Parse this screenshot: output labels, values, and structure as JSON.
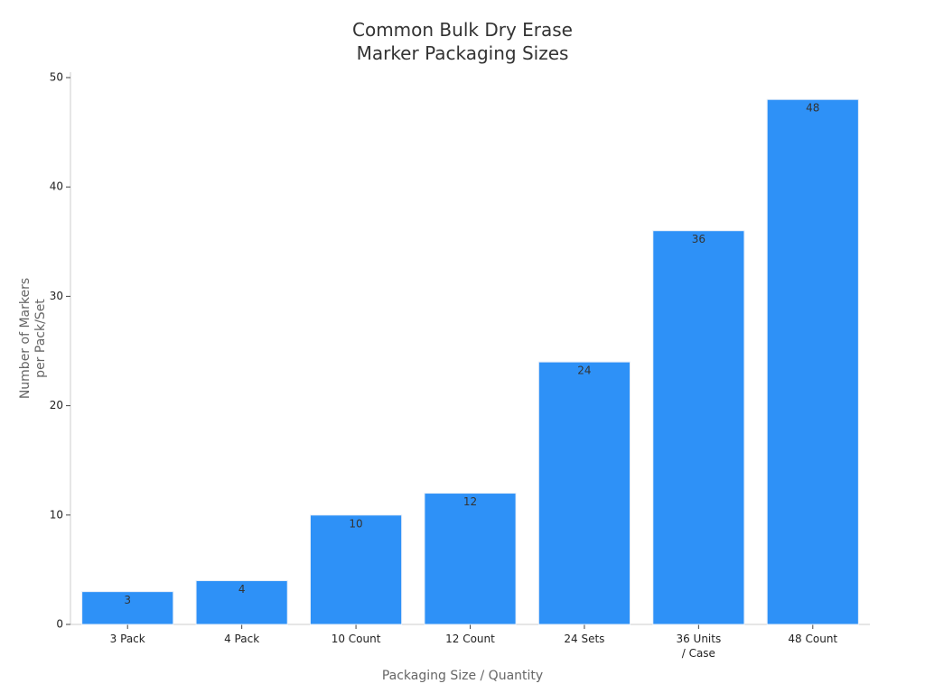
{
  "chart_data": {
    "type": "bar",
    "title": "Common Bulk Dry Erase\nMarker Packaging Sizes",
    "x_label": "Packaging Size / Quantity",
    "y_label": "Number of Markers\nper Pack/Set",
    "categories": [
      "3 Pack",
      "4 Pack",
      "10 Count",
      "12 Count",
      "24 Sets",
      "36 Units\n/ Case",
      "48 Count"
    ],
    "values": [
      3,
      4,
      10,
      12,
      24,
      36,
      48
    ],
    "color": "#2e91f7",
    "ylim": [
      0,
      50
    ],
    "yticks": [
      0,
      10,
      20,
      30,
      40,
      50
    ],
    "grid": false
  }
}
